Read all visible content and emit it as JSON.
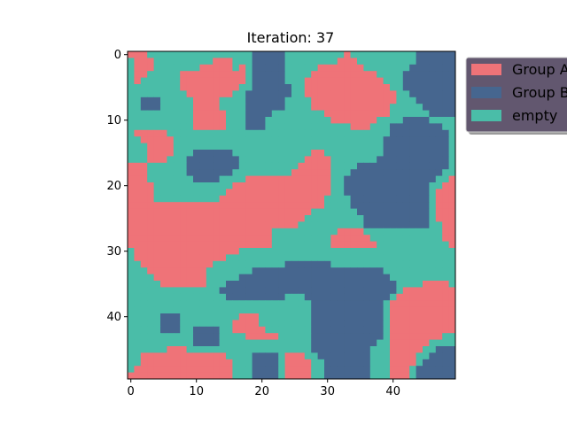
{
  "chart_data": {
    "type": "heatmap",
    "title": "Iteration: 37",
    "xlabel": "",
    "ylabel": "",
    "grid_size": [
      50,
      50
    ],
    "xlim": [
      -0.5,
      49.5
    ],
    "ylim": [
      49.5,
      -0.5
    ],
    "x_ticks": [
      0,
      10,
      20,
      30,
      40
    ],
    "y_ticks": [
      0,
      10,
      20,
      30,
      40
    ],
    "grid": false,
    "legend_position": "upper-left-outside",
    "categories": [
      {
        "label": "Group A",
        "color": "#ef7378"
      },
      {
        "label": "Group B",
        "color": "#46668f"
      },
      {
        "label": "empty",
        "color": "#4abda8"
      }
    ],
    "legend_frame_color": "#62576f",
    "legend_shadow_color": "#9a9a9a",
    "rows": [
      "AAAEEEEEEEEEEEEEEEEBBBBBEEEEEEEEEAEEEEEEEEEEBBBBBB",
      "EAAAEEEEEEEEEAAAEEEBBBBBEEEEEEEEAAAEEEEEEEEEBBBBBB",
      "EAAAEEEEEEEAAAAAEAEBBBBBEEEEEAAAAAAAEEEEEEEBBBBBBB",
      "EAAEEEEEAAAAAAAAAAEBBBBBEEEEAAAAAAAAAAEEEEBBBBBBBB",
      "EAEEEEEEAAAAAAAAAAEBBBBBEEEAAAAAAAAAAAAEEEBBBBBBBB",
      "EEEEEEEEAAAAAAAAAEEBBBBBBEEAAAAAAAAAAAAAEEBBBBBBBB",
      "EEEEEEEEEAAAAAAAEEBBBBBBBEEAAAAAAAAAAAAAAEEBBBBBBB",
      "EEBBBEEEEEAAAAEEEEBBBBBBEEEEAAAAAAAAAAAAAEEEBBBBBB",
      "EEBBBEEEEEAAAAEEEEBBBBBBEEEEAAAAAAAAAAAAEEEEEBBBBB",
      "EEEEEEEEEEAAAAAEEEBBBBEEEEEEEEAAAAAAAAAAEEEEEEBBBB",
      "EEEEEEEEEEAAAAAEEEBBBEEEEEEEEEEAAAAAAAEEEEBBBBEEEE",
      "EEEEEEEEEEAAAAAEEEBBBEEEEEEEEEEEEEAAAEEEBBBBBBBBEE",
      "EAAAAAEEEEEEEEEEEEEEEEEEEEEEEEEEEEEEEEEEBBBBBBBBBE",
      "EEAAAAAEEEEEEEEEEEEEEEEEEEEEEEEEEEEEEEEBBBBBBBBBBE",
      "EEEAAAAEEEEEEEEEEEEEEEEEEEEEEEEEEEEEEEEBBBBBBBBBBE",
      "EEEAAAAEEEBBBBBBEEEEEEEEEEEEAAEEEEEEEEEBBBBBBBBBBE",
      "EEEAAAEEEBBBBBBBBEEEEEEEEEEAAAAEEEEEEEBBBBBBBBBBBE",
      "AAAEEEEEEBBBBBBBBEEEEEEEEEAAAAAEEEEBBBBBBBBBBBBBBE",
      "AAAEEEEEEBBBBBBBEEEEEEEEEAAAAAAEEEBBBBBBBBBBBBBBEE",
      "AAAEEEEEEEBBBBEEEEAAAAAAAAAAAAAEEBBBBBBBBBBBBBBEEA",
      "AAAAEEEEEEEEEEEEAAAAAAAAAAAAAAAEEBBBBBBBBBBBBBEEAA",
      "AAAAEEEEEEEEEEEAAAAAAAAAAAAAAAAEEBBBBBBBBBBBBBEAAA",
      "AAAAEEEEEEEEEEAAAAAAAAAAAAAAAAEEEEBBBBBBBBBBBBEAAA",
      "AAAAAAAAAAAAAAAAAAAAAAAAAAAAAAEEEEBBBBBBBBBBBBEAAA",
      "AAAAAAAAAAAAAAAAAAAAAAAAAAAAEEEEEEEBBBBBBBBBBBEAAA",
      "AAAAAAAAAAAAAAAAAAAAAAAAAAAEEEEEEEEEBBBBBBBBBBEAAA",
      "AAAAAAAAAAAAAAAAAAAAAAAAAAEEEEEEEEEEBBBBBBBBBBEEAA",
      "AAAAAAAAAAAAAAAAAAAAAAEEEEEEEEEEAAAAEEEEEEEEEEEEAA",
      "AAAAAAAAAAAAAAAAAAAAAAEEEEEEEEEAAAAAAEEEEEEEEEEEAA",
      "AAAAAAAAAAAAAAAAAAAAAAEEEEEEEEEAAAAAAAEEEEEEEEEEEA",
      "EAAAAAAAAAAAAAAAAEEEEEEEEEEEEEEEEEEEEEEEEEEEEEEEEE",
      "EAAAAAAAAAAAAAAEEEEEEEEEEEEEEEEEEEEEEEEEEEEEEEEEEE",
      "EEAAAAAAAAAAAEEEEEEEEEEEBBBBBBBEEEEEEEEEEEEEEEEEEE",
      "EEEAAAAAAAAAEEEEEEEBBBBBBBBBBBBBBBBBBBBEEEEEEEEEEE",
      "EEEEAAAAAAAAEEEEEBBBBBBBBBBBBBBBBBBBBBBBEEEEEEEEEE",
      "EEEEEAAAAAAAEEEBBBBBBBBBBBBBBBBBBBBBBBBBBEEEEAAAAE",
      "EEEEEEEEEEEEEEBBBBBBBBBBBBBBBBBBBBBBBBBBBEAAAAAAAA",
      "EEEEEEEEEEEEEEEBBBBBBBBBEEEBBBBBBBBBBBBBEAAAAAAAAA",
      "EEEEEEEEEEEEEEEEEEEEEEEEEEEEBBBBBBBBBBBEAAAAAAAAAA",
      "EEEEEEEEEEEEEEEEEEEEEEEEEEEEBBBBBBBBBBBEAAAAAAAAAA",
      "EEEEEBBBEEEEEEEEEAAAEEEEEEEEBBBBBBBBBBBEAAAAAAAAAA",
      "EEEEEBBBEEEEEEEEAAAAEEEEEEEEBBBBBBBBBBBEAAAAAAAAAA",
      "EEEEEBBBEEBBBBEEAAAAAEEEEEEEBBBBBBBBBBBEAAAAAAAAAA",
      "EEEEEEEEEEBBBBEEEEAAAAAEEEEEBBBBBBBBBBBEAAAAAAAAEE",
      "EEEEEEEEEEBBBBEEEEEEEEEEEEEEBBBBBBBBBBEEAAAAAAEEEE",
      "EEEEEEAAAEEEEEEEEEEEEEEEEEEEBBBBBBBBBEEEAAAAAEEBBB",
      "EEAAAAAAAAAAAAAEEEEBBBBEAAAEEBBBBBBBBEEEAAAAEEBBBB",
      "EEAAAAAAAAAAAAAAEEEBBBBEAAAAEEBBBBBBBEEEAAAAEBBBBB",
      "EAAAAAAAAAAAAAAAEEEBBBBEAAAAEEBBBBBBBEEEAAAEBBBBBB",
      "AAAAAAAAAAAAAAAAEEEBBBBEAAAAEEBBBBBBBEEEAAAEBBBBBB"
    ]
  }
}
